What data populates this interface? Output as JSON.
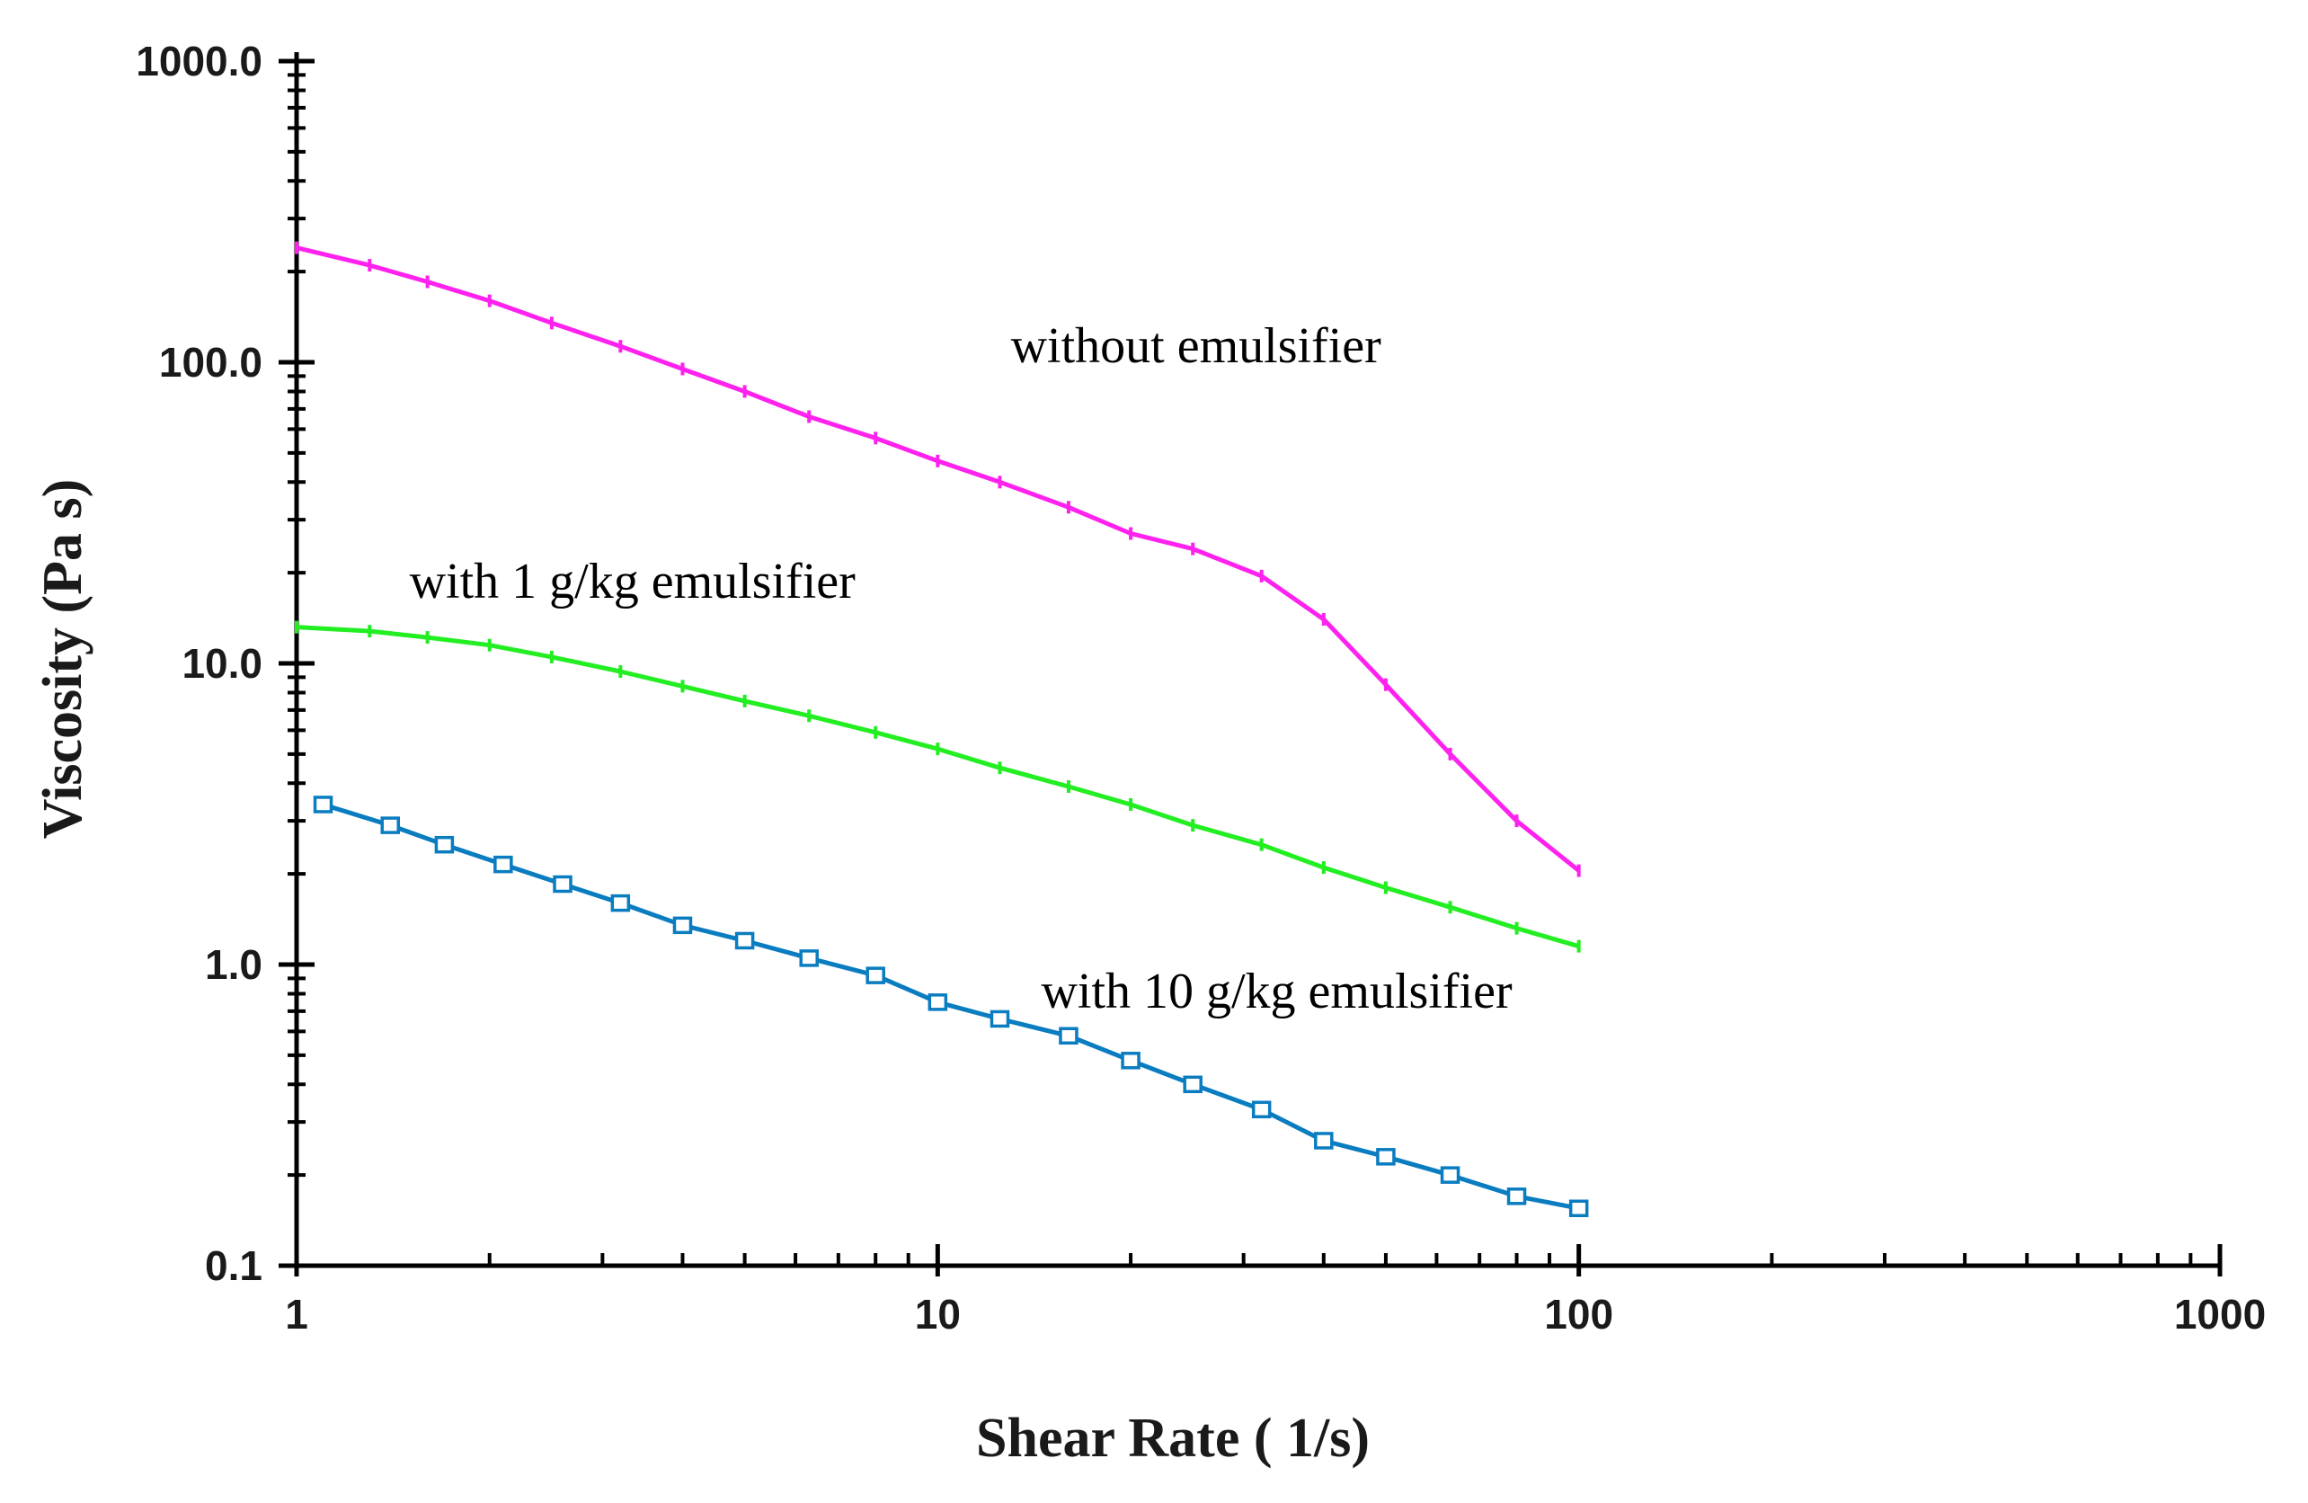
{
  "chart_data": {
    "type": "line",
    "x_scale": "log",
    "y_scale": "log",
    "xlim": [
      1,
      1000
    ],
    "ylim": [
      0.1,
      1000
    ],
    "xlabel": "Shear Rate ( 1/s)",
    "ylabel": "Viscosity (Pa s)",
    "x_ticks": [
      1,
      10,
      100,
      1000
    ],
    "x_tick_labels": [
      "1",
      "10",
      "100",
      "1000"
    ],
    "y_ticks": [
      0.1,
      1,
      10,
      100,
      1000
    ],
    "y_tick_labels": [
      "0.1",
      "1.0",
      "10.0",
      "100.0",
      "1000.0"
    ],
    "series": [
      {
        "name": "without emulsifier",
        "color": "#ff22ee",
        "marker": "line",
        "x": [
          1.0,
          1.3,
          1.6,
          2.0,
          2.5,
          3.2,
          4.0,
          5.0,
          6.3,
          8.0,
          10,
          12.5,
          16,
          20,
          25,
          32,
          40,
          50,
          63,
          80,
          100
        ],
        "y": [
          240,
          210,
          185,
          160,
          135,
          113,
          95,
          80,
          66,
          56,
          47,
          40,
          33,
          27,
          24,
          19.5,
          14,
          8.5,
          5.0,
          3.0,
          2.05
        ]
      },
      {
        "name": "with 1 g/kg emulsifier",
        "color": "#22ee22",
        "marker": "line",
        "x": [
          1.0,
          1.3,
          1.6,
          2.0,
          2.5,
          3.2,
          4.0,
          5.0,
          6.3,
          8.0,
          10,
          12.5,
          16,
          20,
          25,
          32,
          40,
          50,
          63,
          80,
          100
        ],
        "y": [
          13.2,
          12.8,
          12.2,
          11.5,
          10.5,
          9.4,
          8.4,
          7.5,
          6.7,
          5.9,
          5.2,
          4.5,
          3.9,
          3.4,
          2.9,
          2.5,
          2.1,
          1.8,
          1.55,
          1.32,
          1.15
        ]
      },
      {
        "name": "with 10 g/kg emulsifier",
        "color": "#0a7cc0",
        "marker": "square",
        "x": [
          1.1,
          1.4,
          1.7,
          2.1,
          2.6,
          3.2,
          4.0,
          5.0,
          6.3,
          8.0,
          10,
          12.5,
          16,
          20,
          25,
          32,
          40,
          50,
          63,
          80,
          100
        ],
        "y": [
          3.4,
          2.9,
          2.5,
          2.15,
          1.85,
          1.6,
          1.35,
          1.2,
          1.05,
          0.92,
          0.75,
          0.66,
          0.58,
          0.48,
          0.4,
          0.33,
          0.26,
          0.23,
          0.2,
          0.17,
          0.155
        ]
      }
    ],
    "annotations": [
      {
        "text": "without emulsifier",
        "x": 13,
        "y": 100
      },
      {
        "text": "with 1 g/kg emulsifier",
        "x": 1.5,
        "y": 16.5
      },
      {
        "text": "with 10 g/kg emulsifier",
        "x": 14.5,
        "y": 0.72
      }
    ]
  }
}
